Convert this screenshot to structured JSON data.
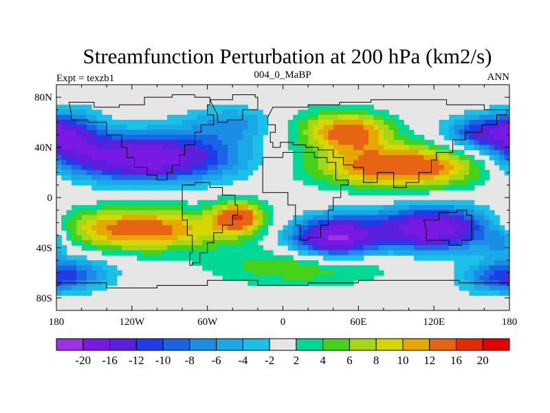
{
  "chart_data": {
    "type": "heatmap",
    "title": "Streamfunction Perturbation at 200 hPa (km2/s)",
    "left_label": "Expt = texzb1",
    "center_label": "004_0_MaBP",
    "right_label": "ANN",
    "x_ticks": [
      "180",
      "120W",
      "60W",
      "0",
      "60E",
      "120E",
      "180"
    ],
    "x_tick_values": [
      -180,
      -120,
      -60,
      0,
      60,
      120,
      180
    ],
    "y_ticks": [
      "80N",
      "40N",
      "0",
      "40S",
      "80S"
    ],
    "y_tick_values": [
      80,
      40,
      0,
      -40,
      -80
    ],
    "xlim": [
      -180,
      180
    ],
    "ylim": [
      -90,
      90
    ],
    "colorbar": {
      "labels": [
        "-20",
        "-16",
        "-12",
        "-10",
        "-8",
        "-6",
        "-4",
        "-2",
        "2",
        "4",
        "6",
        "8",
        "10",
        "12",
        "16",
        "20"
      ],
      "levels": [
        -20,
        -16,
        -12,
        -10,
        -8,
        -6,
        -4,
        -2,
        2,
        4,
        6,
        8,
        10,
        12,
        16,
        20
      ],
      "colors": [
        "#a030e8",
        "#7a18e6",
        "#5a20dc",
        "#1e3ce8",
        "#1a64e6",
        "#1a8ee6",
        "#1aa8e6",
        "#1ac0e6",
        "#e6e6e6",
        "#00d896",
        "#46d21a",
        "#a6d614",
        "#d6d600",
        "#e6a800",
        "#e66414",
        "#e62a00",
        "#e60000"
      ]
    },
    "field_centers": [
      {
        "lon": -110,
        "lat": 32,
        "value": -20,
        "spread_lon": 50,
        "spread_lat": 13
      },
      {
        "lon": -170,
        "lat": 50,
        "value": -10,
        "spread_lon": 18,
        "spread_lat": 14
      },
      {
        "lon": -35,
        "lat": 58,
        "value": -8,
        "spread_lon": 30,
        "spread_lat": 10
      },
      {
        "lon": -115,
        "lat": -25,
        "value": 14,
        "spread_lon": 50,
        "spread_lat": 12
      },
      {
        "lon": -35,
        "lat": -15,
        "value": 14,
        "spread_lon": 14,
        "spread_lat": 9
      },
      {
        "lon": 40,
        "lat": -32,
        "value": -20,
        "spread_lon": 24,
        "spread_lat": 11
      },
      {
        "lon": 120,
        "lat": -25,
        "value": -20,
        "spread_lon": 35,
        "spread_lat": 12
      },
      {
        "lon": 175,
        "lat": -35,
        "value": -6,
        "spread_lon": 10,
        "spread_lat": 8
      },
      {
        "lon": 25,
        "lat": 55,
        "value": 6,
        "spread_lon": 40,
        "spread_lat": 12
      },
      {
        "lon": 95,
        "lat": 25,
        "value": 16,
        "spread_lon": 48,
        "spread_lat": 12
      },
      {
        "lon": 55,
        "lat": 52,
        "value": 10,
        "spread_lon": 20,
        "spread_lat": 10
      },
      {
        "lon": 160,
        "lat": 52,
        "value": -12,
        "spread_lon": 22,
        "spread_lat": 9
      },
      {
        "lon": 15,
        "lat": -55,
        "value": 6,
        "spread_lon": 50,
        "spread_lat": 11
      },
      {
        "lon": -170,
        "lat": -60,
        "value": -8,
        "spread_lon": 25,
        "spread_lat": 10
      },
      {
        "lon": 170,
        "lat": -65,
        "value": -6,
        "spread_lon": 20,
        "spread_lat": 8
      }
    ]
  }
}
